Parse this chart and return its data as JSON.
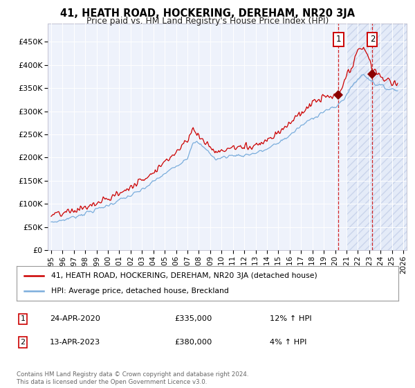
{
  "title": "41, HEATH ROAD, HOCKERING, DEREHAM, NR20 3JA",
  "subtitle": "Price paid vs. HM Land Registry's House Price Index (HPI)",
  "ylabel_ticks": [
    "£0",
    "£50K",
    "£100K",
    "£150K",
    "£200K",
    "£250K",
    "£300K",
    "£350K",
    "£400K",
    "£450K"
  ],
  "ytick_values": [
    0,
    50000,
    100000,
    150000,
    200000,
    250000,
    300000,
    350000,
    400000,
    450000
  ],
  "ylim": [
    0,
    490000
  ],
  "xlim_start": 1994.7,
  "xlim_end": 2026.3,
  "xticks": [
    1995,
    1996,
    1997,
    1998,
    1999,
    2000,
    2001,
    2002,
    2003,
    2004,
    2005,
    2006,
    2007,
    2008,
    2009,
    2010,
    2011,
    2012,
    2013,
    2014,
    2015,
    2016,
    2017,
    2018,
    2019,
    2020,
    2021,
    2022,
    2023,
    2024,
    2025,
    2026
  ],
  "red_line_color": "#cc0000",
  "blue_line_color": "#7aaddc",
  "marker1_x": 2020.3,
  "marker1_y": 335000,
  "marker2_x": 2023.28,
  "marker2_y": 380000,
  "marker1_label": "1",
  "marker2_label": "2",
  "marker1_date": "24-APR-2020",
  "marker1_price": "£335,000",
  "marker1_hpi": "12% ↑ HPI",
  "marker2_date": "13-APR-2023",
  "marker2_price": "£380,000",
  "marker2_hpi": "4% ↑ HPI",
  "legend_line1": "41, HEATH ROAD, HOCKERING, DEREHAM, NR20 3JA (detached house)",
  "legend_line2": "HPI: Average price, detached house, Breckland",
  "footer": "Contains HM Land Registry data © Crown copyright and database right 2024.\nThis data is licensed under the Open Government Licence v3.0.",
  "shaded_region_start": 2021.0,
  "shaded_region_end": 2026.3,
  "background_color": "#eef2fb"
}
